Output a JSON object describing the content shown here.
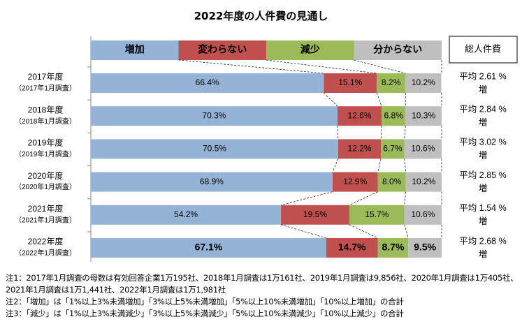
{
  "chart_data": {
    "type": "bar",
    "orientation": "horizontal-stacked-100",
    "title": "2022年度の人件費の見通し",
    "legend": [
      "増加",
      "変わらない",
      "減少",
      "分からない"
    ],
    "legend_placement": "top",
    "colors": [
      "#95B3D7",
      "#C0504D",
      "#9BBB59",
      "#BFBFBF"
    ],
    "categories": [
      {
        "year": "2017年度",
        "survey": "（2017年1月調査）"
      },
      {
        "year": "2018年度",
        "survey": "（2018年1月調査）"
      },
      {
        "year": "2019年度",
        "survey": "（2019年1月調査）"
      },
      {
        "year": "2020年度",
        "survey": "（2020年1月調査）"
      },
      {
        "year": "2021年度",
        "survey": "（2021年1月調査）"
      },
      {
        "year": "2022年度",
        "survey": "（2022年1月調査）"
      }
    ],
    "series": [
      {
        "name": "増加",
        "values": [
          66.4,
          70.3,
          70.5,
          68.9,
          54.2,
          67.1
        ]
      },
      {
        "name": "変わらない",
        "values": [
          15.1,
          12.6,
          12.2,
          12.9,
          19.5,
          14.7
        ]
      },
      {
        "name": "減少",
        "values": [
          8.2,
          6.8,
          6.7,
          8.0,
          15.7,
          8.7
        ]
      },
      {
        "name": "分からない",
        "values": [
          10.2,
          10.3,
          10.6,
          10.2,
          10.6,
          9.5
        ]
      }
    ],
    "highlight_category": "2022年度",
    "value_suffix": "%",
    "total_header": "総人件費",
    "totals": [
      {
        "line1": "平均 2.61 %",
        "line2": "増"
      },
      {
        "line1": "平均 2.84 %",
        "line2": "増"
      },
      {
        "line1": "平均 3.02 %",
        "line2": "増"
      },
      {
        "line1": "平均 2.85 %",
        "line2": "増"
      },
      {
        "line1": "平均 1.54 %",
        "line2": "増"
      },
      {
        "line1": "平均 2.68 %",
        "line2": "増"
      }
    ],
    "xlim": [
      0,
      100
    ],
    "grid": false
  },
  "notes": [
    "注1：2017年1月調査の母数は有効回答企業1万195社、2018年1月調査は1万161社、2019年1月調査は9,856社、2020年1月調査は1万405社、2021年1月調査は1万1,441社、2022年1月調査は1万1,981社",
    "注2：「増加」は「1%以上3%未満増加」「3%以上5%未満増加」「5%以上10%未満増加」「10%以上増加」の合計",
    "注3：「減少」は「1%以上3%未満減少」「3%以上5%未満減少」「5%以上10%未満減少」「10%以上減少」の合計"
  ]
}
